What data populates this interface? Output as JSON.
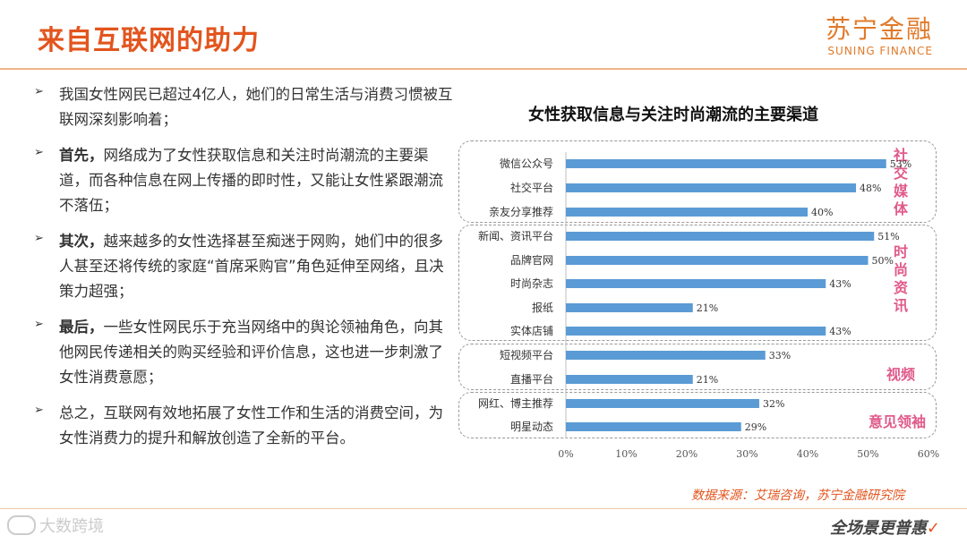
{
  "header": {
    "title": "来自互联网的助力",
    "logo_cn": "苏宁金融",
    "logo_en": "SUNING FINANCE"
  },
  "bullets": [
    {
      "lead": "",
      "text": "我国女性网民已超过4亿人，她们的日常生活与消费习惯被互联网深刻影响着；"
    },
    {
      "lead": "首先，",
      "text": "网络成为了女性获取信息和关注时尚潮流的主要渠道，而各种信息在网上传播的即时性，又能让女性紧跟潮流不落伍；"
    },
    {
      "lead": "其次，",
      "text": "越来越多的女性选择甚至痴迷于网购，她们中的很多人甚至还将传统的家庭“首席采购官”角色延伸至网络，且决策力超强；"
    },
    {
      "lead": "最后，",
      "text": "一些女性网民乐于充当网络中的舆论领袖角色，向其他网民传递相关的购买经验和评价信息，这也进一步刺激了女性消费意愿；"
    },
    {
      "lead": "",
      "text": "总之，互联网有效地拓展了女性工作和生活的消费空间，为女性消费力的提升和解放创造了全新的平台。"
    }
  ],
  "chart_data": {
    "type": "bar",
    "orientation": "horizontal",
    "title": "女性获取信息与关注时尚潮流的主要渠道",
    "categories": [
      "微信公众号",
      "社交平台",
      "亲友分享推荐",
      "新闻、资讯平台",
      "品牌官网",
      "时尚杂志",
      "报纸",
      "实体店铺",
      "短视频平台",
      "直播平台",
      "网红、博主推荐",
      "明星动态"
    ],
    "values": [
      53,
      48,
      40,
      51,
      50,
      43,
      21,
      43,
      33,
      21,
      32,
      29
    ],
    "value_labels": [
      "53%",
      "48%",
      "40%",
      "51%",
      "50%",
      "43%",
      "21%",
      "43%",
      "33%",
      "21%",
      "32%",
      "29%"
    ],
    "xlim": [
      0,
      60
    ],
    "xticks": [
      "0%",
      "10%",
      "20%",
      "30%",
      "40%",
      "50%",
      "60%"
    ],
    "bar_color": "#5b9bd5",
    "groups": [
      {
        "label": "社交媒体",
        "members": [
          "微信公众号",
          "社交平台",
          "亲友分享推荐"
        ]
      },
      {
        "label": "时尚资讯",
        "members": [
          "新闻、资讯平台",
          "品牌官网",
          "时尚杂志",
          "报纸",
          "实体店铺"
        ]
      },
      {
        "label": "视频",
        "members": [
          "短视频平台",
          "直播平台"
        ]
      },
      {
        "label": "意见领袖",
        "members": [
          "网红、博主推荐",
          "明星动态"
        ]
      }
    ],
    "group_label_color": "#e05a8a"
  },
  "source": "数据来源：艾瑞咨询，苏宁金融研究院",
  "watermark": "大数跨境",
  "slogan": "全场景更普惠"
}
